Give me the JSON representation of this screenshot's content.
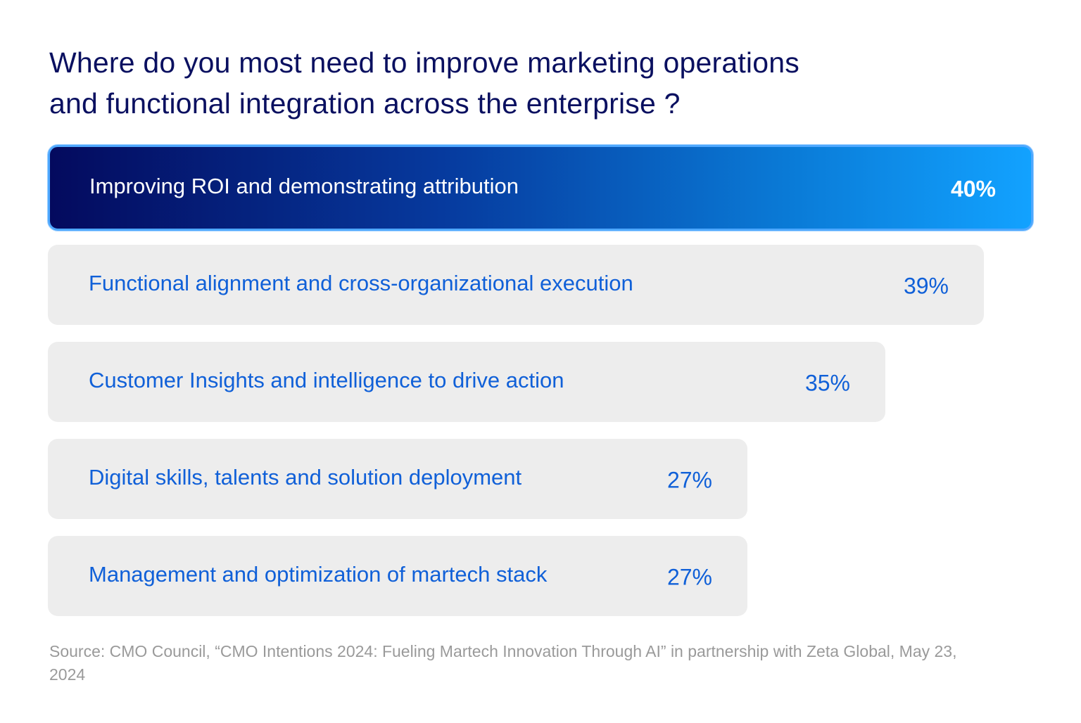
{
  "title_lines": [
    "Where do you most need to improve marketing operations",
    "and functional integration across the enterprise ?"
  ],
  "source": "Source: CMO Council, “CMO Intentions 2024: Fueling Martech Innovation Through AI” in partnership with Zeta Global, May 23, 2024",
  "colors": {
    "title": "#0a1060",
    "bar_bg": "#ededed",
    "bar_text": "#1060d8",
    "highlight_start": "#040a5e",
    "highlight_end": "#12a2ff",
    "source_text": "#9a9a9a"
  },
  "chart_data": {
    "type": "bar",
    "orientation": "horizontal",
    "title": "Where do you most need to improve marketing operations and functional integration across the enterprise ?",
    "categories": [
      "Improving ROI and demonstrating attribution",
      "Functional alignment and cross-organizational execution",
      "Customer Insights and intelligence to drive action",
      "Digital skills, talents and solution deployment",
      "Management and optimization of martech stack"
    ],
    "values": [
      40,
      39,
      35,
      27,
      27
    ],
    "value_labels": [
      "40%",
      "39%",
      "35%",
      "27%",
      "27%"
    ],
    "unit": "%",
    "highlight_index": 0,
    "xlim": [
      0,
      40
    ]
  }
}
